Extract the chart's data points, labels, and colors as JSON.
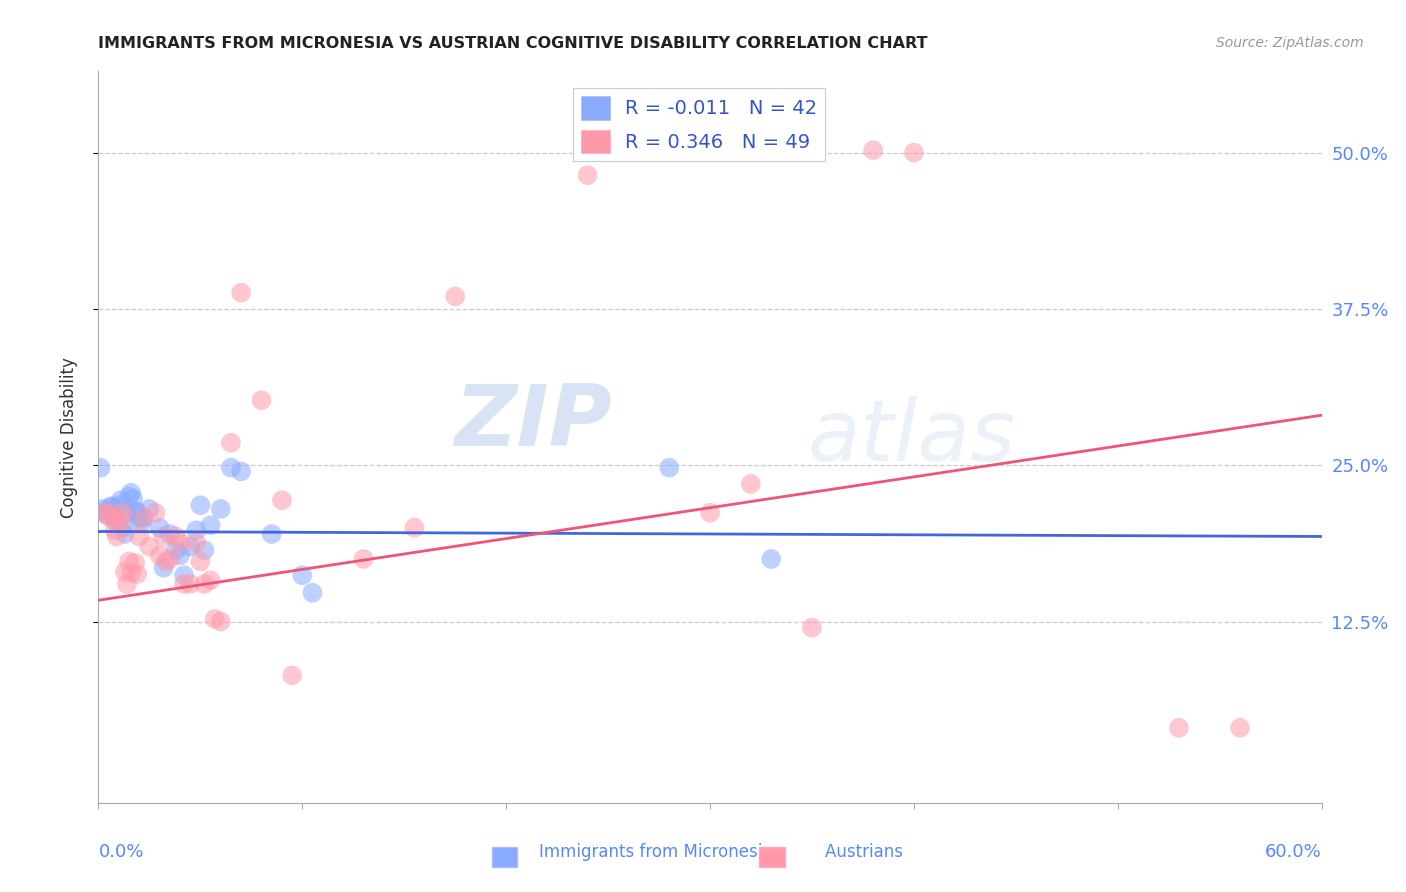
{
  "title": "IMMIGRANTS FROM MICRONESIA VS AUSTRIAN COGNITIVE DISABILITY CORRELATION CHART",
  "source": "Source: ZipAtlas.com",
  "ylabel": "Cognitive Disability",
  "ytick_labels": [
    "12.5%",
    "25.0%",
    "37.5%",
    "50.0%"
  ],
  "ytick_values": [
    0.125,
    0.25,
    0.375,
    0.5
  ],
  "legend_blue_r": "R = -0.011",
  "legend_blue_n": "N = 42",
  "legend_pink_r": "R = 0.346",
  "legend_pink_n": "N = 49",
  "blue_color": "#88aaff",
  "pink_color": "#ff99aa",
  "blue_line_color": "#4466dd",
  "pink_line_color": "#ee5577",
  "watermark_zip": "ZIP",
  "watermark_atlas": "atlas",
  "blue_dots": [
    [
      0.001,
      0.248
    ],
    [
      0.002,
      0.215
    ],
    [
      0.003,
      0.213
    ],
    [
      0.004,
      0.21
    ],
    [
      0.005,
      0.212
    ],
    [
      0.006,
      0.217
    ],
    [
      0.007,
      0.217
    ],
    [
      0.008,
      0.208
    ],
    [
      0.009,
      0.204
    ],
    [
      0.01,
      0.218
    ],
    [
      0.011,
      0.222
    ],
    [
      0.012,
      0.2
    ],
    [
      0.013,
      0.195
    ],
    [
      0.014,
      0.212
    ],
    [
      0.015,
      0.225
    ],
    [
      0.016,
      0.228
    ],
    [
      0.017,
      0.223
    ],
    [
      0.018,
      0.213
    ],
    [
      0.019,
      0.213
    ],
    [
      0.02,
      0.208
    ],
    [
      0.021,
      0.204
    ],
    [
      0.022,
      0.208
    ],
    [
      0.025,
      0.215
    ],
    [
      0.03,
      0.2
    ],
    [
      0.032,
      0.168
    ],
    [
      0.035,
      0.195
    ],
    [
      0.038,
      0.182
    ],
    [
      0.04,
      0.178
    ],
    [
      0.042,
      0.162
    ],
    [
      0.045,
      0.185
    ],
    [
      0.048,
      0.198
    ],
    [
      0.05,
      0.218
    ],
    [
      0.052,
      0.182
    ],
    [
      0.055,
      0.202
    ],
    [
      0.06,
      0.215
    ],
    [
      0.065,
      0.248
    ],
    [
      0.07,
      0.245
    ],
    [
      0.085,
      0.195
    ],
    [
      0.1,
      0.162
    ],
    [
      0.105,
      0.148
    ],
    [
      0.28,
      0.248
    ],
    [
      0.33,
      0.175
    ]
  ],
  "pink_dots": [
    [
      0.003,
      0.212
    ],
    [
      0.005,
      0.212
    ],
    [
      0.006,
      0.208
    ],
    [
      0.008,
      0.198
    ],
    [
      0.009,
      0.193
    ],
    [
      0.01,
      0.208
    ],
    [
      0.011,
      0.204
    ],
    [
      0.012,
      0.212
    ],
    [
      0.013,
      0.165
    ],
    [
      0.014,
      0.155
    ],
    [
      0.015,
      0.173
    ],
    [
      0.016,
      0.164
    ],
    [
      0.018,
      0.172
    ],
    [
      0.019,
      0.163
    ],
    [
      0.02,
      0.193
    ],
    [
      0.022,
      0.208
    ],
    [
      0.025,
      0.185
    ],
    [
      0.028,
      0.212
    ],
    [
      0.03,
      0.178
    ],
    [
      0.032,
      0.193
    ],
    [
      0.033,
      0.173
    ],
    [
      0.035,
      0.175
    ],
    [
      0.038,
      0.193
    ],
    [
      0.04,
      0.188
    ],
    [
      0.042,
      0.155
    ],
    [
      0.045,
      0.155
    ],
    [
      0.048,
      0.188
    ],
    [
      0.05,
      0.173
    ],
    [
      0.052,
      0.155
    ],
    [
      0.055,
      0.158
    ],
    [
      0.057,
      0.127
    ],
    [
      0.06,
      0.125
    ],
    [
      0.065,
      0.268
    ],
    [
      0.07,
      0.388
    ],
    [
      0.08,
      0.302
    ],
    [
      0.09,
      0.222
    ],
    [
      0.095,
      0.082
    ],
    [
      0.13,
      0.175
    ],
    [
      0.155,
      0.2
    ],
    [
      0.175,
      0.385
    ],
    [
      0.24,
      0.482
    ],
    [
      0.25,
      0.505
    ],
    [
      0.3,
      0.212
    ],
    [
      0.32,
      0.235
    ],
    [
      0.35,
      0.12
    ],
    [
      0.38,
      0.502
    ],
    [
      0.4,
      0.5
    ],
    [
      0.53,
      0.04
    ],
    [
      0.56,
      0.04
    ]
  ],
  "blue_line": {
    "x0": 0.0,
    "x1": 0.6,
    "y0": 0.197,
    "y1": 0.193
  },
  "pink_line": {
    "x0": 0.0,
    "x1": 0.6,
    "y0": 0.142,
    "y1": 0.29
  },
  "xmin": 0.0,
  "xmax": 0.6,
  "ymin": -0.02,
  "ymax": 0.565,
  "background_color": "#ffffff",
  "grid_color": "#cccccc",
  "xtick_positions": [
    0.0,
    0.1,
    0.2,
    0.3,
    0.4,
    0.5,
    0.6
  ]
}
